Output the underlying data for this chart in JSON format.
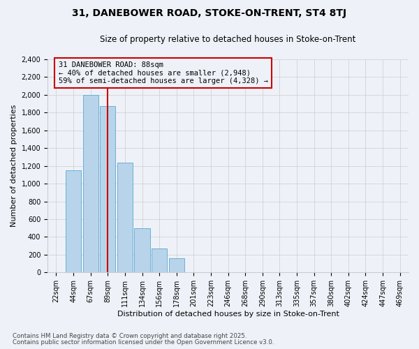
{
  "title": "31, DANEBOWER ROAD, STOKE-ON-TRENT, ST4 8TJ",
  "subtitle": "Size of property relative to detached houses in Stoke-on-Trent",
  "xlabel": "Distribution of detached houses by size in Stoke-on-Trent",
  "ylabel": "Number of detached properties",
  "footnote1": "Contains HM Land Registry data © Crown copyright and database right 2025.",
  "footnote2": "Contains public sector information licensed under the Open Government Licence v3.0.",
  "annotation_title": "31 DANEBOWER ROAD: 88sqm",
  "annotation_line1": "← 40% of detached houses are smaller (2,948)",
  "annotation_line2": "59% of semi-detached houses are larger (4,328) →",
  "categories": [
    "22sqm",
    "44sqm",
    "67sqm",
    "89sqm",
    "111sqm",
    "134sqm",
    "156sqm",
    "178sqm",
    "201sqm",
    "223sqm",
    "246sqm",
    "268sqm",
    "290sqm",
    "313sqm",
    "335sqm",
    "357sqm",
    "380sqm",
    "402sqm",
    "424sqm",
    "447sqm",
    "469sqm"
  ],
  "bar_heights": [
    0,
    1150,
    2000,
    1870,
    1240,
    500,
    270,
    160,
    0,
    0,
    0,
    0,
    0,
    0,
    0,
    0,
    0,
    0,
    0,
    0,
    0
  ],
  "bar_color": "#b8d4ea",
  "bar_edge_color": "#6aafd4",
  "subject_bar_index": 3,
  "ylim": [
    0,
    2400
  ],
  "yticks": [
    0,
    200,
    400,
    600,
    800,
    1000,
    1200,
    1400,
    1600,
    1800,
    2000,
    2200,
    2400
  ],
  "grid_color": "#cccccc",
  "background_color": "#eef2f8",
  "annotation_box_edge": "#cc0000",
  "subject_line_color": "#cc0000",
  "title_fontsize": 10,
  "subtitle_fontsize": 8.5,
  "axis_label_fontsize": 8,
  "tick_fontsize": 7,
  "annotation_fontsize": 7.5
}
